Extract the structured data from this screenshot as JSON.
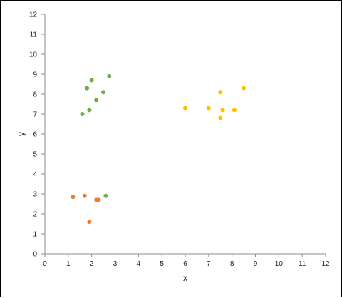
{
  "chart_data": {
    "type": "scatter",
    "title": "",
    "xlabel": "x",
    "ylabel": "y",
    "xlim": [
      0,
      12
    ],
    "ylim": [
      0,
      12
    ],
    "xticks": [
      0,
      1,
      2,
      3,
      4,
      5,
      6,
      7,
      8,
      9,
      10,
      11,
      12
    ],
    "yticks": [
      0,
      1,
      2,
      3,
      4,
      5,
      6,
      7,
      8,
      9,
      10,
      11,
      12
    ],
    "grid": false,
    "legend": "none",
    "series": [
      {
        "color": "#70AD47",
        "points": [
          {
            "x": 2.75,
            "y": 8.9
          },
          {
            "x": 2.0,
            "y": 8.7
          },
          {
            "x": 1.8,
            "y": 8.3
          },
          {
            "x": 2.5,
            "y": 8.1
          },
          {
            "x": 2.2,
            "y": 7.7
          },
          {
            "x": 1.9,
            "y": 7.2
          },
          {
            "x": 1.6,
            "y": 7.0
          },
          {
            "x": 2.6,
            "y": 2.9
          }
        ]
      },
      {
        "color": "#FFC000",
        "points": [
          {
            "x": 8.5,
            "y": 8.3
          },
          {
            "x": 7.5,
            "y": 8.1
          },
          {
            "x": 6.0,
            "y": 7.3
          },
          {
            "x": 7.0,
            "y": 7.3
          },
          {
            "x": 7.6,
            "y": 7.2
          },
          {
            "x": 8.1,
            "y": 7.2
          },
          {
            "x": 7.5,
            "y": 6.8
          }
        ]
      },
      {
        "color": "#ED7D31",
        "points": [
          {
            "x": 1.2,
            "y": 2.85
          },
          {
            "x": 1.7,
            "y": 2.9
          },
          {
            "x": 2.2,
            "y": 2.7
          },
          {
            "x": 2.3,
            "y": 2.7
          },
          {
            "x": 1.9,
            "y": 1.6
          }
        ]
      }
    ]
  }
}
